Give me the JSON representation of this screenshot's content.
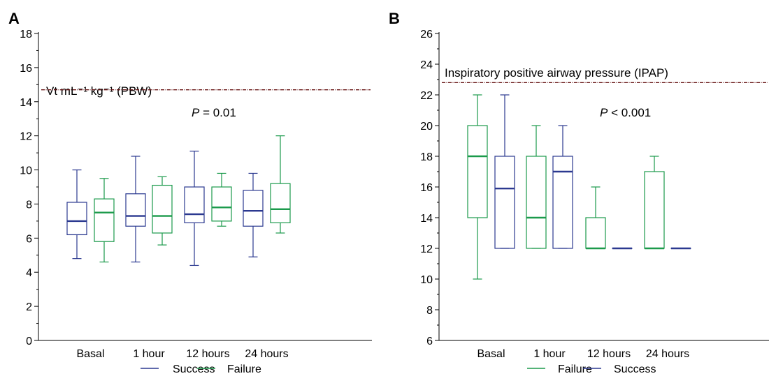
{
  "colors": {
    "success": "#2b3990",
    "failure": "#1b9a4b",
    "reference": "#6b1a1a",
    "axis": "#000000"
  },
  "panels": [
    {
      "letter": "A",
      "annotation": "Vt mL⁻¹ kg⁻¹ (PBW)",
      "p_prefix": "P",
      "p_suffix": " = 0.01",
      "legend": [
        {
          "label": "Success",
          "color_key": "success"
        },
        {
          "label": "Failure",
          "color_key": "failure"
        }
      ]
    },
    {
      "letter": "B",
      "annotation": "Inspiratory positive airway pressure (IPAP)",
      "p_prefix": "P",
      "p_suffix": " < 0.001",
      "legend": [
        {
          "label": "Failure",
          "color_key": "failure"
        },
        {
          "label": "Success",
          "color_key": "success"
        }
      ]
    }
  ],
  "chart_data": [
    {
      "type": "box",
      "panel": "A",
      "title": "",
      "annotation": "Vt mL⁻¹ kg⁻¹ (PBW)",
      "categories": [
        "Basal",
        "1 hour",
        "12 hours",
        "24 hours"
      ],
      "ylim": [
        0,
        18
      ],
      "yticks": [
        0,
        2,
        4,
        6,
        8,
        10,
        12,
        14,
        16,
        18
      ],
      "reference_line": 14.7,
      "series": [
        {
          "name": "Success",
          "color_key": "success",
          "boxes": [
            {
              "min": 4.8,
              "q1": 6.2,
              "median": 7.0,
              "q3": 8.1,
              "max": 10.0
            },
            {
              "min": 4.6,
              "q1": 6.7,
              "median": 7.3,
              "q3": 8.6,
              "max": 10.8
            },
            {
              "min": 4.4,
              "q1": 6.9,
              "median": 7.4,
              "q3": 9.0,
              "max": 11.1
            },
            {
              "min": 4.9,
              "q1": 6.7,
              "median": 7.6,
              "q3": 8.8,
              "max": 9.8
            }
          ]
        },
        {
          "name": "Failure",
          "color_key": "failure",
          "boxes": [
            {
              "min": 4.6,
              "q1": 5.8,
              "median": 7.5,
              "q3": 8.3,
              "max": 9.5
            },
            {
              "min": 5.6,
              "q1": 6.3,
              "median": 7.3,
              "q3": 9.1,
              "max": 9.6
            },
            {
              "min": 6.7,
              "q1": 7.0,
              "median": 7.8,
              "q3": 9.0,
              "max": 9.8
            },
            {
              "min": 6.3,
              "q1": 6.9,
              "median": 7.7,
              "q3": 9.2,
              "max": 12.0
            }
          ]
        }
      ]
    },
    {
      "type": "box",
      "panel": "B",
      "title": "",
      "annotation": "Inspiratory positive airway pressure (IPAP)",
      "categories": [
        "Basal",
        "1 hour",
        "12 hours",
        "24 hours"
      ],
      "ylim": [
        6,
        26
      ],
      "yticks": [
        6,
        8,
        10,
        12,
        14,
        16,
        18,
        20,
        22,
        24,
        26
      ],
      "reference_line": 22.8,
      "series": [
        {
          "name": "Failure",
          "color_key": "failure",
          "boxes": [
            {
              "min": 10,
              "q1": 14,
              "median": 18,
              "q3": 20,
              "max": 22
            },
            {
              "min": 12,
              "q1": 12,
              "median": 14,
              "q3": 18,
              "max": 20
            },
            {
              "min": 12,
              "q1": 12,
              "median": 12,
              "q3": 14,
              "max": 16
            },
            {
              "min": 12,
              "q1": 12,
              "median": 12,
              "q3": 17,
              "max": 18
            }
          ]
        },
        {
          "name": "Success",
          "color_key": "success",
          "boxes": [
            {
              "min": 12,
              "q1": 12,
              "median": 15.9,
              "q3": 18,
              "max": 22
            },
            {
              "min": 12,
              "q1": 12,
              "median": 17,
              "q3": 18,
              "max": 20
            },
            {
              "min": 12,
              "q1": 12,
              "median": 12,
              "q3": 12,
              "max": 12
            },
            {
              "min": 12,
              "q1": 12,
              "median": 12,
              "q3": 12,
              "max": 12
            }
          ]
        }
      ]
    }
  ]
}
